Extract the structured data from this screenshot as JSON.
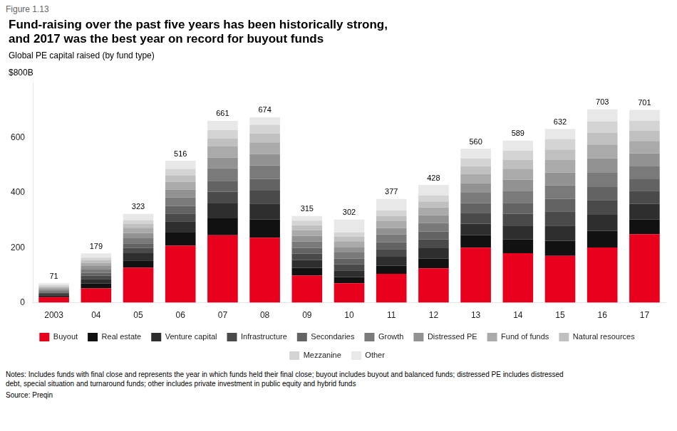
{
  "chart_data": {
    "type": "bar",
    "stacked": true,
    "figure_label": "Figure 1.13",
    "title": [
      "Fund-raising over the past five years has been historically strong,",
      "and 2017 was the best year on record for buyout funds"
    ],
    "subtitle": "Global PE capital raised (by fund type)",
    "ylabel": "$800B",
    "categories": [
      "2003",
      "04",
      "05",
      "06",
      "07",
      "08",
      "09",
      "10",
      "11",
      "12",
      "13",
      "14",
      "15",
      "16",
      "17"
    ],
    "series": [
      {
        "name": "Buyout",
        "color": "#e8001c",
        "values": [
          20,
          52.09,
          127.13,
          206.98,
          245.16,
          235.99,
          98.73,
          70.94,
          105,
          125,
          200,
          180,
          170,
          200.72,
          249.42
        ]
      },
      {
        "name": "Real estate",
        "color": "#111111",
        "values": [
          6,
          17.05,
          26.37,
          48.13,
          61.29,
          66.08,
          28.21,
          22.3,
          30,
          35,
          45,
          50,
          55,
          60.68,
          52.51
        ]
      },
      {
        "name": "Venture capital",
        "color": "#2e2e2e",
        "values": [
          6,
          17.05,
          26.37,
          40.43,
          54.69,
          58.53,
          28.21,
          24.32,
          32,
          38,
          42,
          48,
          55,
          57.88,
          56.89
        ]
      },
      {
        "name": "Infrastructure",
        "color": "#4a4a4a",
        "values": [
          4,
          11.37,
          18.83,
          28.88,
          42.43,
          47.2,
          23.51,
          22.3,
          28,
          32,
          40,
          45,
          52,
          54.15,
          48.13
        ]
      },
      {
        "name": "Secondaries",
        "color": "#636363",
        "values": [
          4,
          11.37,
          16.95,
          26.96,
          39.6,
          42.48,
          20.69,
          20.27,
          25,
          28,
          35,
          40,
          45,
          46.68,
          42.01
        ]
      },
      {
        "name": "Growth",
        "color": "#7a7a7a",
        "values": [
          5,
          13.26,
          20.72,
          30.81,
          45.26,
          49.09,
          23.51,
          22.3,
          28,
          32,
          38,
          44,
          50,
          54.15,
          48.13
        ]
      },
      {
        "name": "Distressed PE",
        "color": "#929292",
        "values": [
          5,
          11.37,
          16.95,
          28.88,
          39.6,
          41.54,
          20.69,
          20.27,
          24,
          28,
          34,
          40,
          46,
          50.41,
          45.51
        ]
      },
      {
        "name": "Fund of funds",
        "color": "#aaaaaa",
        "values": [
          5,
          11.37,
          18.83,
          28.88,
          39.6,
          41.54,
          20.69,
          20.27,
          24,
          28,
          34,
          40,
          46,
          50.41,
          45.51
        ]
      },
      {
        "name": "Natural resources",
        "color": "#c0c0c0",
        "values": [
          4,
          9.47,
          15.07,
          23.1,
          30.17,
          32.1,
          16.93,
          16.21,
          20,
          22,
          28,
          33,
          38,
          42.01,
          36.76
        ]
      },
      {
        "name": "Mezzanine",
        "color": "#d4d4d4",
        "values": [
          5,
          9.47,
          13.18,
          23.1,
          30.17,
          32.1,
          16.93,
          16.21,
          20,
          22,
          28,
          33,
          38,
          42.01,
          36.76
        ]
      },
      {
        "name": "Other",
        "color": "#e8e8e8",
        "values": [
          7,
          15.15,
          22.6,
          29.84,
          33.0,
          27.38,
          16.93,
          46.62,
          41,
          38,
          36,
          36,
          37,
          43.88,
          39.38
        ]
      }
    ],
    "totals": [
      71,
      179,
      323,
      516,
      661,
      674,
      315,
      302,
      377,
      428,
      560,
      589,
      632,
      703,
      701
    ],
    "ylim": [
      0,
      800
    ],
    "yticks": [
      0,
      200,
      400,
      600
    ],
    "grid": false,
    "legend": "bottom",
    "notes": "Notes: Includes funds with final close and represents the year in which funds held their final close; buyout includes buyout and balanced funds; distressed PE includes distressed\ndebt, special situation and turnaround funds; other includes private investment in public equity and hybrid funds",
    "source": "Source: Preqin"
  }
}
